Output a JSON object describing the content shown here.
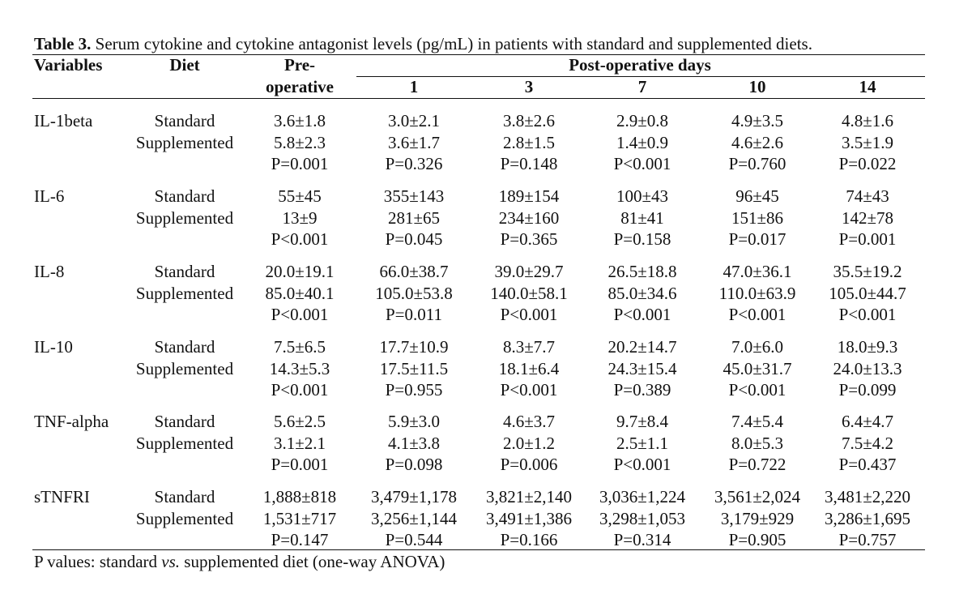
{
  "title": {
    "label": "Table 3.",
    "text": " Serum cytokine and cytokine antagonist levels (pg/mL) in patients with standard and supplemented diets."
  },
  "headers": {
    "variables": "Variables",
    "diet": "Diet",
    "pre_line1": "Pre-",
    "pre_line2": "operative",
    "post": "Post-operative days",
    "days": [
      "1",
      "3",
      "7",
      "10",
      "14"
    ]
  },
  "diets": [
    "Standard",
    "Supplemented"
  ],
  "rows": [
    {
      "variable": "IL-1beta",
      "standard": [
        "3.6±1.8",
        "3.0±2.1",
        "3.8±2.6",
        "2.9±0.8",
        "4.9±3.5",
        "4.8±1.6"
      ],
      "supplemented": [
        "5.8±2.3",
        "3.6±1.7",
        "2.8±1.5",
        "1.4±0.9",
        "4.6±2.6",
        "3.5±1.9"
      ],
      "p": [
        "P=0.001",
        "P=0.326",
        "P=0.148",
        "P<0.001",
        "P=0.760",
        "P=0.022"
      ]
    },
    {
      "variable": "IL-6",
      "standard": [
        "55±45",
        "355±143",
        "189±154",
        "100±43",
        "96±45",
        "74±43"
      ],
      "supplemented": [
        "13±9",
        "281±65",
        "234±160",
        "81±41",
        "151±86",
        "142±78"
      ],
      "p": [
        "P<0.001",
        "P=0.045",
        "P=0.365",
        "P=0.158",
        "P=0.017",
        "P=0.001"
      ]
    },
    {
      "variable": "IL-8",
      "standard": [
        "20.0±19.1",
        "66.0±38.7",
        "39.0±29.7",
        "26.5±18.8",
        "47.0±36.1",
        "35.5±19.2"
      ],
      "supplemented": [
        "85.0±40.1",
        "105.0±53.8",
        "140.0±58.1",
        "85.0±34.6",
        "110.0±63.9",
        "105.0±44.7"
      ],
      "p": [
        "P<0.001",
        "P=0.011",
        "P<0.001",
        "P<0.001",
        "P<0.001",
        "P<0.001"
      ]
    },
    {
      "variable": "IL-10",
      "standard": [
        "7.5±6.5",
        "17.7±10.9",
        "8.3±7.7",
        "20.2±14.7",
        "7.0±6.0",
        "18.0±9.3"
      ],
      "supplemented": [
        "14.3±5.3",
        "17.5±11.5",
        "18.1±6.4",
        "24.3±15.4",
        "45.0±31.7",
        "24.0±13.3"
      ],
      "p": [
        "P<0.001",
        "P=0.955",
        "P<0.001",
        "P=0.389",
        "P<0.001",
        "P=0.099"
      ]
    },
    {
      "variable": "TNF-alpha",
      "standard": [
        "5.6±2.5",
        "5.9±3.0",
        "4.6±3.7",
        "9.7±8.4",
        "7.4±5.4",
        "6.4±4.7"
      ],
      "supplemented": [
        "3.1±2.1",
        "4.1±3.8",
        "2.0±1.2",
        "2.5±1.1",
        "8.0±5.3",
        "7.5±4.2"
      ],
      "p": [
        "P=0.001",
        "P=0.098",
        "P=0.006",
        "P<0.001",
        "P=0.722",
        "P=0.437"
      ]
    },
    {
      "variable": "sTNFRI",
      "standard": [
        "1,888±818",
        "3,479±1,178",
        "3,821±2,140",
        "3,036±1,224",
        "3,561±2,024",
        "3,481±2,220"
      ],
      "supplemented": [
        "1,531±717",
        "3,256±1,144",
        "3,491±1,386",
        "3,298±1,053",
        "3,179±929",
        "3,286±1,695"
      ],
      "p": [
        "P=0.147",
        "P=0.544",
        "P=0.166",
        "P=0.314",
        "P=0.905",
        "P=0.757"
      ]
    }
  ],
  "footnote": {
    "before": "P values: standard ",
    "vs": "vs.",
    "after": " supplemented diet (one-way ANOVA)"
  }
}
